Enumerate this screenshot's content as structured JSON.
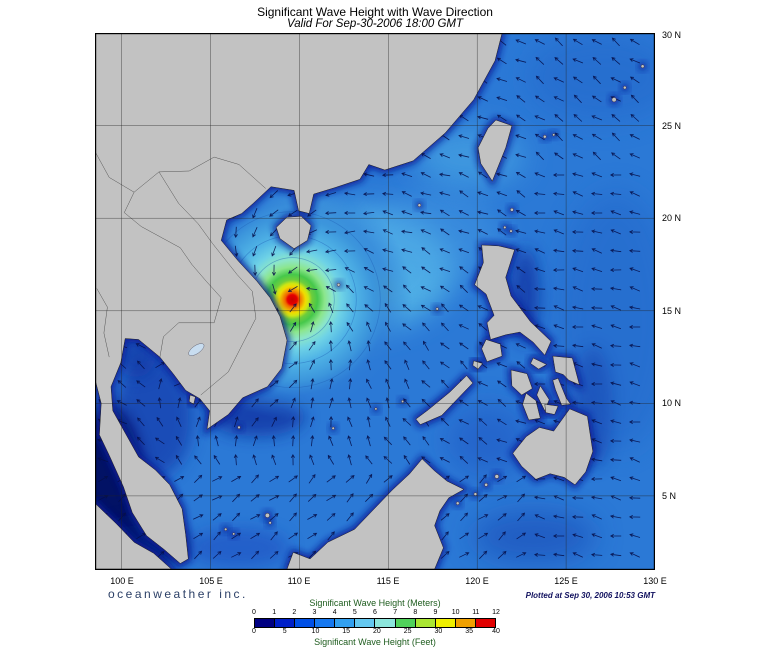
{
  "title": "Significant Wave Height with Wave Direction",
  "subtitle": "Valid For Sep-30-2006 18:00 GMT",
  "branding": "oceanweather inc.",
  "plotted_at": "Plotted at Sep 30, 2006 10:53 GMT",
  "axes": {
    "x_ticks": [
      "100 E",
      "105 E",
      "110 E",
      "115 E",
      "120 E",
      "125 E",
      "130 E"
    ],
    "y_ticks": [
      "30 N",
      "25 N",
      "20 N",
      "15 N",
      "10 N",
      "5 N"
    ]
  },
  "legend": {
    "meters_label": "Significant Wave Height (Meters)",
    "meters_ticks": [
      "0",
      "1",
      "2",
      "3",
      "4",
      "5",
      "6",
      "7",
      "8",
      "9",
      "10",
      "11",
      "12"
    ],
    "feet_label": "Significant Wave Height (Feet)",
    "feet_ticks": [
      "0",
      "5",
      "10",
      "15",
      "20",
      "25",
      "30",
      "35",
      "40"
    ],
    "colors": [
      "#000082",
      "#0020c8",
      "#0050e6",
      "#1678f0",
      "#32a0f0",
      "#64c8f0",
      "#8ce6dc",
      "#50d25a",
      "#aae632",
      "#f0f000",
      "#f0a000",
      "#e10000"
    ]
  },
  "map": {
    "storm": {
      "center_lon_e": 109.6,
      "center_lat_n": 15.6,
      "peak_band_m": "11-12"
    }
  }
}
